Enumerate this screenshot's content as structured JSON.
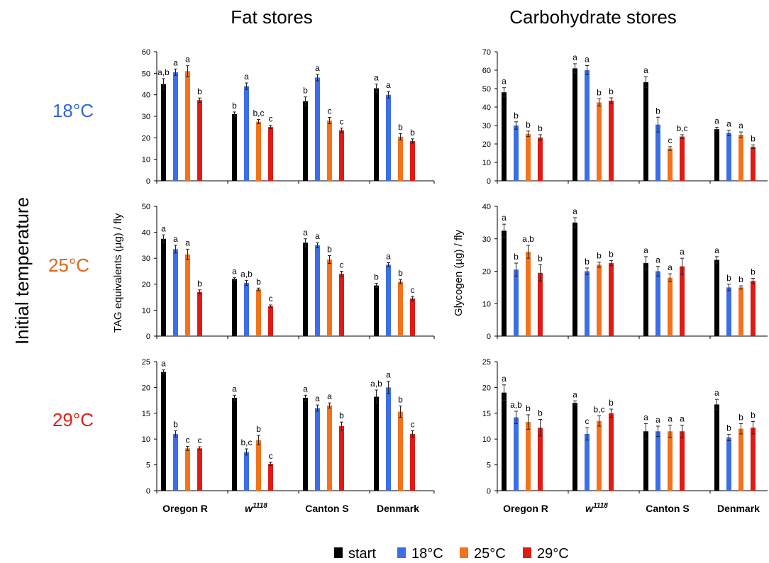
{
  "col_titles": [
    "Fat stores",
    "Carbohydrate stores"
  ],
  "row_labels": [
    "18°C",
    "25°C",
    "29°C"
  ],
  "row_label_colors": [
    "#3366dd",
    "#e2621b",
    "#dd2218"
  ],
  "side_title": "Initial temperature",
  "ylabels": [
    "TAG equivalents (µg) / fly",
    "Glycogen (µg) / fly"
  ],
  "strains": [
    "Oregon R",
    "w",
    "Canton S",
    "Denmark"
  ],
  "strain_w_sup": "1118",
  "series_colors": [
    "#000000",
    "#3c6ee6",
    "#f2731b",
    "#e01a14"
  ],
  "legend": [
    "start",
    "18°C",
    "25°C",
    "29°C"
  ],
  "chart_data": [
    {
      "type": "bar",
      "panel": "Fat stores — 18°C",
      "ylim": [
        0,
        60
      ],
      "yticks": [
        0,
        10,
        20,
        30,
        40,
        50,
        60
      ],
      "categories": [
        "Oregon R",
        "w1118",
        "Canton S",
        "Denmark"
      ],
      "series": [
        {
          "name": "start",
          "values": [
            45,
            31,
            37,
            43
          ],
          "err": [
            2.5,
            1,
            2,
            2
          ]
        },
        {
          "name": "18°C",
          "values": [
            50.5,
            44,
            48,
            40
          ],
          "err": [
            1.5,
            1.5,
            1.5,
            1.5
          ]
        },
        {
          "name": "25°C",
          "values": [
            51,
            27.5,
            28,
            20.5
          ],
          "err": [
            2.5,
            1,
            1.5,
            1.5
          ]
        },
        {
          "name": "29°C",
          "values": [
            37.5,
            25,
            23.5,
            18.5
          ],
          "err": [
            1,
            0.8,
            1,
            1
          ]
        }
      ],
      "letters": [
        [
          "a,b",
          "a",
          "a",
          "b"
        ],
        [
          "b",
          "a",
          "b,c",
          "c"
        ],
        [
          "b",
          "a",
          "c",
          "c"
        ],
        [
          "a",
          "a",
          "b",
          "b"
        ]
      ]
    },
    {
      "type": "bar",
      "panel": "Carbohydrate stores — 18°C",
      "ylim": [
        0,
        70
      ],
      "yticks": [
        0,
        10,
        20,
        30,
        40,
        50,
        60,
        70
      ],
      "categories": [
        "Oregon R",
        "w1118",
        "Canton S",
        "Denmark"
      ],
      "series": [
        {
          "name": "start",
          "values": [
            48,
            61,
            53.5,
            28
          ],
          "err": [
            2.5,
            2.5,
            3,
            1
          ]
        },
        {
          "name": "18°C",
          "values": [
            30,
            60,
            30.5,
            26
          ],
          "err": [
            2,
            2.5,
            4,
            1.5
          ]
        },
        {
          "name": "25°C",
          "values": [
            25.5,
            42.5,
            17.5,
            25
          ],
          "err": [
            1.5,
            2,
            1,
            1.5
          ]
        },
        {
          "name": "29°C",
          "values": [
            23.5,
            43.5,
            24,
            18.5
          ],
          "err": [
            1.5,
            1.5,
            1,
            1
          ]
        }
      ],
      "letters": [
        [
          "a",
          "b",
          "b",
          "b"
        ],
        [
          "a",
          "a",
          "b",
          "b"
        ],
        [
          "a",
          "b",
          "c",
          "b,c"
        ],
        [
          "a",
          "a",
          "a",
          "b"
        ]
      ]
    },
    {
      "type": "bar",
      "panel": "Fat stores — 25°C",
      "ylim": [
        0,
        50
      ],
      "yticks": [
        0,
        10,
        20,
        30,
        40,
        50
      ],
      "categories": [
        "Oregon R",
        "w1118",
        "Canton S",
        "Denmark"
      ],
      "series": [
        {
          "name": "start",
          "values": [
            37.5,
            22,
            36,
            19.5
          ],
          "err": [
            1.5,
            0.5,
            1.5,
            0.8
          ]
        },
        {
          "name": "18°C",
          "values": [
            33.5,
            20.5,
            35,
            27.5
          ],
          "err": [
            1.5,
            1,
            1,
            0.8
          ]
        },
        {
          "name": "25°C",
          "values": [
            31.5,
            18,
            29.5,
            21
          ],
          "err": [
            2,
            0.5,
            1.5,
            0.8
          ]
        },
        {
          "name": "29°C",
          "values": [
            17,
            11.5,
            24,
            14.5
          ],
          "err": [
            0.8,
            0.5,
            1,
            0.8
          ]
        }
      ],
      "letters": [
        [
          "a",
          "a",
          "a",
          "b"
        ],
        [
          "a",
          "a,b",
          "b",
          "c"
        ],
        [
          "a",
          "a",
          "b",
          "c"
        ],
        [
          "b",
          "a",
          "b",
          "c"
        ]
      ]
    },
    {
      "type": "bar",
      "panel": "Carbohydrate stores — 25°C",
      "ylim": [
        0,
        40
      ],
      "yticks": [
        0,
        10,
        20,
        30,
        40
      ],
      "categories": [
        "Oregon R",
        "w1118",
        "Canton S",
        "Denmark"
      ],
      "series": [
        {
          "name": "start",
          "values": [
            32.5,
            35,
            22.5,
            23.5
          ],
          "err": [
            2,
            1.5,
            2,
            1
          ]
        },
        {
          "name": "18°C",
          "values": [
            20.5,
            20,
            20,
            15
          ],
          "err": [
            2,
            1,
            1.5,
            1
          ]
        },
        {
          "name": "25°C",
          "values": [
            26,
            22,
            18,
            15
          ],
          "err": [
            2,
            0.8,
            1.2,
            0.5
          ]
        },
        {
          "name": "29°C",
          "values": [
            19.5,
            22.5,
            21.5,
            17
          ],
          "err": [
            2.5,
            0.8,
            2.5,
            0.8
          ]
        }
      ],
      "letters": [
        [
          "a",
          "b",
          "a,b",
          "b"
        ],
        [
          "a",
          "b",
          "b",
          "b"
        ],
        [
          "a",
          "a",
          "a",
          "a"
        ],
        [
          "a",
          "b",
          "b",
          "b"
        ]
      ]
    },
    {
      "type": "bar",
      "panel": "Fat stores — 29°C",
      "ylim": [
        0,
        25
      ],
      "yticks": [
        0,
        5,
        10,
        15,
        20,
        25
      ],
      "categories": [
        "Oregon R",
        "w1118",
        "Canton S",
        "Denmark"
      ],
      "series": [
        {
          "name": "start",
          "values": [
            23,
            18,
            18,
            18.2
          ],
          "err": [
            0.4,
            0.5,
            0.5,
            1.3
          ]
        },
        {
          "name": "18°C",
          "values": [
            11,
            7.5,
            16,
            20
          ],
          "err": [
            0.6,
            0.6,
            0.6,
            1.2
          ]
        },
        {
          "name": "25°C",
          "values": [
            8.2,
            9.8,
            16.5,
            15.3
          ],
          "err": [
            0.4,
            0.9,
            0.5,
            1.1
          ]
        },
        {
          "name": "29°C",
          "values": [
            8.2,
            5.2,
            12.5,
            11
          ],
          "err": [
            0.3,
            0.3,
            0.8,
            0.6
          ]
        }
      ],
      "letters": [
        [
          "a",
          "b",
          "c",
          "c"
        ],
        [
          "a",
          "b,c",
          "b",
          "c"
        ],
        [
          "a",
          "a",
          "a",
          "b"
        ],
        [
          "a,b",
          "a",
          "b",
          "c"
        ]
      ]
    },
    {
      "type": "bar",
      "panel": "Carbohydrate stores — 29°C",
      "ylim": [
        0,
        25
      ],
      "yticks": [
        0,
        5,
        10,
        15,
        20,
        25
      ],
      "categories": [
        "Oregon R",
        "w1118",
        "Canton S",
        "Denmark"
      ],
      "series": [
        {
          "name": "start",
          "values": [
            19,
            17,
            11.5,
            16.7
          ],
          "err": [
            1.5,
            0.4,
            1.5,
            1
          ]
        },
        {
          "name": "18°C",
          "values": [
            14.2,
            11,
            11.5,
            10.3
          ],
          "err": [
            1.2,
            1.2,
            1,
            0.6
          ]
        },
        {
          "name": "25°C",
          "values": [
            13.3,
            13.5,
            11.5,
            12
          ],
          "err": [
            1.4,
            1,
            1.2,
            1
          ]
        },
        {
          "name": "29°C",
          "values": [
            12.2,
            15,
            11.5,
            12.2
          ],
          "err": [
            1.6,
            0.8,
            1.2,
            1.2
          ]
        }
      ],
      "letters": [
        [
          "a",
          "a,b",
          "b",
          "b"
        ],
        [
          "a",
          "c",
          "b,c",
          "b"
        ],
        [
          "a",
          "a",
          "a",
          "a"
        ],
        [
          "a",
          "b",
          "b",
          "b"
        ]
      ]
    }
  ]
}
